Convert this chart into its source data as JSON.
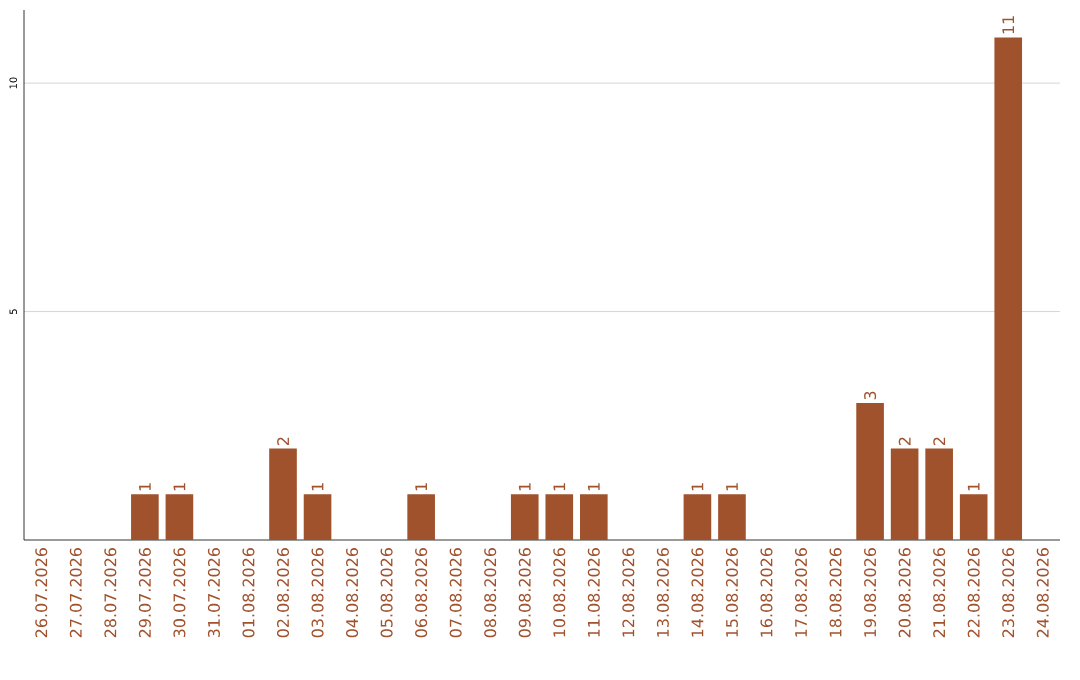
{
  "chart_data": {
    "type": "bar",
    "categories": [
      "26.07.2026",
      "27.07.2026",
      "28.07.2026",
      "29.07.2026",
      "30.07.2026",
      "31.07.2026",
      "01.08.2026",
      "02.08.2026",
      "03.08.2026",
      "04.08.2026",
      "05.08.2026",
      "06.08.2026",
      "07.08.2026",
      "08.08.2026",
      "09.08.2026",
      "10.08.2026",
      "11.08.2026",
      "12.08.2026",
      "13.08.2026",
      "14.08.2026",
      "15.08.2026",
      "16.08.2026",
      "17.08.2026",
      "18.08.2026",
      "19.08.2026",
      "20.08.2026",
      "21.08.2026",
      "22.08.2026",
      "23.08.2026",
      "24.08.2026"
    ],
    "values": [
      0,
      0,
      0,
      1,
      1,
      0,
      0,
      2,
      1,
      0,
      0,
      1,
      0,
      0,
      1,
      1,
      1,
      0,
      0,
      1,
      1,
      0,
      0,
      0,
      3,
      2,
      2,
      1,
      11,
      0
    ],
    "value_labels": [
      null,
      null,
      null,
      "1",
      "1",
      null,
      null,
      "2",
      "1",
      null,
      null,
      "1",
      null,
      null,
      "1",
      "1",
      "1",
      null,
      null,
      "1",
      "1",
      null,
      null,
      null,
      "3",
      "2",
      "2",
      "1",
      "11",
      null
    ],
    "color": "#a0522d",
    "ylim": [
      0,
      11.6
    ],
    "yticks": [
      5,
      10
    ],
    "grid": "y"
  }
}
